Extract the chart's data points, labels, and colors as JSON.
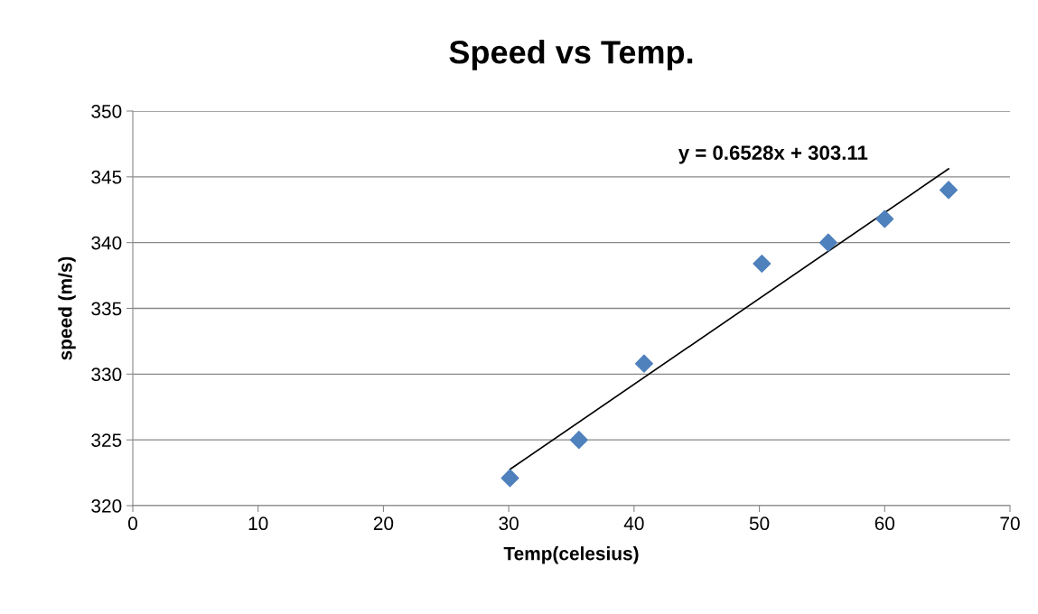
{
  "chart_data": {
    "type": "scatter",
    "title": "Speed vs Temp.",
    "xlabel": "Temp(celesius)",
    "ylabel": "speed (m/s)",
    "series": [
      {
        "color": "#4f81bd",
        "marker": "diamond",
        "x": [
          30.1,
          35.6,
          40.8,
          50.2,
          55.5,
          60.0,
          65.1
        ],
        "values": [
          322.1,
          325.0,
          330.8,
          338.4,
          340.0,
          341.8,
          344.0
        ]
      },
      {
        "type": "line",
        "color": "#000000",
        "marker": "none",
        "x": [
          30.1,
          65.1
        ],
        "values": [
          322.76,
          345.61
        ]
      }
    ],
    "annotations": [
      "y = 0.6528x + 303.11"
    ],
    "xlim": [
      0,
      70
    ],
    "xticks": [
      0,
      10,
      20,
      30,
      40,
      50,
      60,
      70
    ],
    "ylim": [
      320,
      350
    ],
    "yticks": [
      320,
      325,
      330,
      335,
      340,
      345,
      350
    ],
    "grid": "y",
    "legend": false
  }
}
